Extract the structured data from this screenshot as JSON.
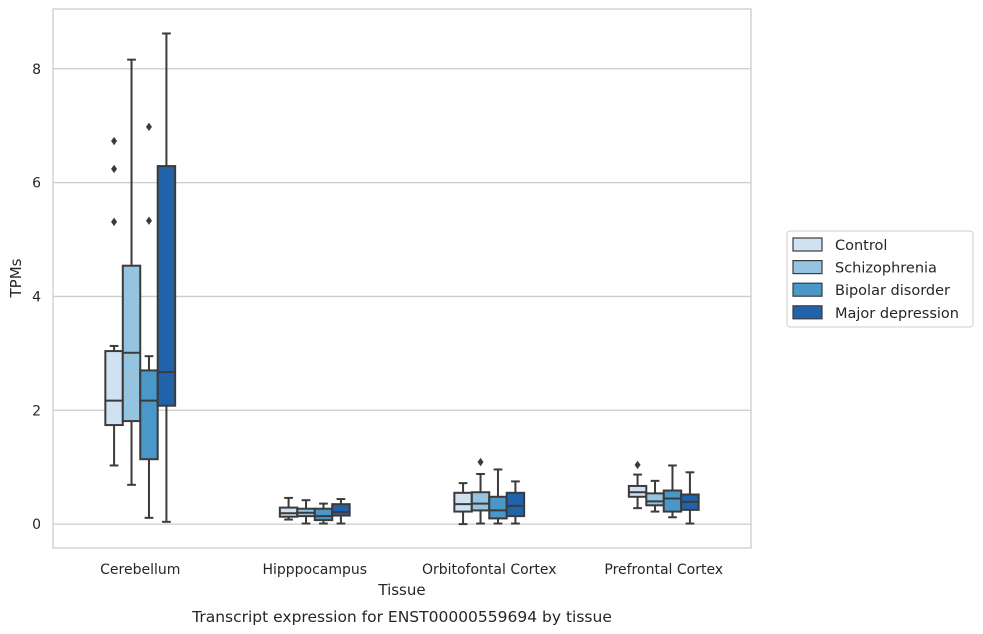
{
  "caption": "Transcript expression for ENST00000559694 by tissue",
  "chart_data": {
    "type": "box",
    "title": "",
    "xlabel": "Tissue",
    "ylabel": "TPMs",
    "ylim": [
      -0.42,
      9.05
    ],
    "yticks": [
      0,
      2,
      4,
      6,
      8
    ],
    "grid": "horizontal",
    "legend_position": "right",
    "categories": [
      "Cerebellum",
      "Hipppocampus",
      "Orbitofontal Cortex",
      "Prefrontal Cortex"
    ],
    "series": [
      {
        "name": "Control",
        "color": "#d0e1f2",
        "boxes": [
          {
            "whislo": 1.03,
            "q1": 1.74,
            "med": 2.17,
            "q3": 3.04,
            "whishi": 3.13,
            "fliers": [
              5.31,
              6.24,
              6.73
            ]
          },
          {
            "whislo": 0.08,
            "q1": 0.13,
            "med": 0.19,
            "q3": 0.29,
            "whishi": 0.46,
            "fliers": []
          },
          {
            "whislo": 0.0,
            "q1": 0.22,
            "med": 0.35,
            "q3": 0.55,
            "whishi": 0.72,
            "fliers": []
          },
          {
            "whislo": 0.28,
            "q1": 0.48,
            "med": 0.56,
            "q3": 0.67,
            "whishi": 0.87,
            "fliers": [
              1.04
            ]
          }
        ]
      },
      {
        "name": "Schizophrenia",
        "color": "#94c4df",
        "boxes": [
          {
            "whislo": 0.69,
            "q1": 1.81,
            "med": 3.01,
            "q3": 4.54,
            "whishi": 8.16,
            "fliers": []
          },
          {
            "whislo": 0.01,
            "q1": 0.14,
            "med": 0.2,
            "q3": 0.27,
            "whishi": 0.42,
            "fliers": []
          },
          {
            "whislo": 0.01,
            "q1": 0.24,
            "med": 0.36,
            "q3": 0.56,
            "whishi": 0.88,
            "fliers": [
              1.09
            ]
          },
          {
            "whislo": 0.22,
            "q1": 0.33,
            "med": 0.4,
            "q3": 0.54,
            "whishi": 0.76,
            "fliers": []
          }
        ]
      },
      {
        "name": "Bipolar disorder",
        "color": "#4a98c9",
        "boxes": [
          {
            "whislo": 0.11,
            "q1": 1.14,
            "med": 2.17,
            "q3": 2.7,
            "whishi": 2.95,
            "fliers": [
              5.33,
              6.98
            ]
          },
          {
            "whislo": 0.01,
            "q1": 0.07,
            "med": 0.14,
            "q3": 0.27,
            "whishi": 0.36,
            "fliers": []
          },
          {
            "whislo": 0.01,
            "q1": 0.1,
            "med": 0.24,
            "q3": 0.48,
            "whishi": 0.96,
            "fliers": []
          },
          {
            "whislo": 0.12,
            "q1": 0.22,
            "med": 0.45,
            "q3": 0.59,
            "whishi": 1.03,
            "fliers": []
          }
        ]
      },
      {
        "name": "Major depression",
        "color": "#2163aa",
        "boxes": [
          {
            "whislo": 0.04,
            "q1": 2.08,
            "med": 2.67,
            "q3": 6.29,
            "whishi": 8.62,
            "fliers": []
          },
          {
            "whislo": 0.01,
            "q1": 0.15,
            "med": 0.21,
            "q3": 0.35,
            "whishi": 0.44,
            "fliers": []
          },
          {
            "whislo": 0.01,
            "q1": 0.14,
            "med": 0.32,
            "q3": 0.55,
            "whishi": 0.75,
            "fliers": []
          },
          {
            "whislo": 0.01,
            "q1": 0.25,
            "med": 0.39,
            "q3": 0.52,
            "whishi": 0.91,
            "fliers": []
          }
        ]
      }
    ]
  }
}
